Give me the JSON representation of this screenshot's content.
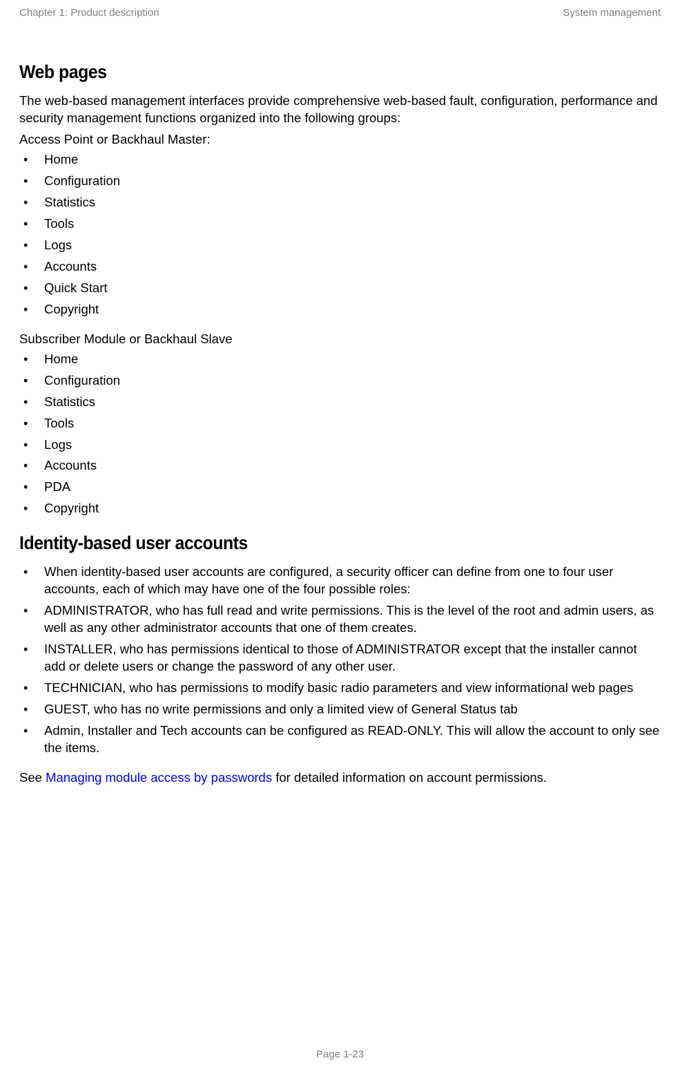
{
  "header": {
    "left": "Chapter 1:  Product description",
    "right": "System management"
  },
  "section1": {
    "heading": "Web pages",
    "intro": "The web-based management interfaces provide comprehensive web-based fault, configuration, performance and security management functions organized into the following groups:",
    "list1_label": "Access Point or Backhaul Master:",
    "list1": [
      "Home",
      "Configuration",
      "Statistics",
      "Tools",
      "Logs",
      "Accounts",
      "Quick Start",
      "Copyright"
    ],
    "list2_label": "Subscriber Module or Backhaul Slave",
    "list2": [
      "Home",
      "Configuration",
      "Statistics",
      "Tools",
      "Logs",
      "Accounts",
      "PDA",
      "Copyright"
    ]
  },
  "section2": {
    "heading": "Identity-based user accounts",
    "roles": [
      "When identity-based user accounts are configured, a security officer can define from one to four user accounts, each of which may have one of the four possible roles:",
      "ADMINISTRATOR, who has full read and write permissions. This is the level of the root and admin users, as well as any other administrator accounts that one of them creates.",
      "INSTALLER, who has permissions identical to those of ADMINISTRATOR except that the installer cannot add or delete users or change the password of any other user.",
      "TECHNICIAN, who has permissions to modify basic radio parameters and view informational web pages",
      "GUEST, who has no write permissions and only a limited view of General Status tab",
      "Admin, Installer and Tech accounts can be configured as READ-ONLY. This will allow the account to only see the items."
    ],
    "footnote_pre": "See ",
    "footnote_link": "Managing module access by passwords",
    "footnote_post": " for detailed information on account permissions."
  },
  "footer": {
    "page": "Page 1-23"
  }
}
